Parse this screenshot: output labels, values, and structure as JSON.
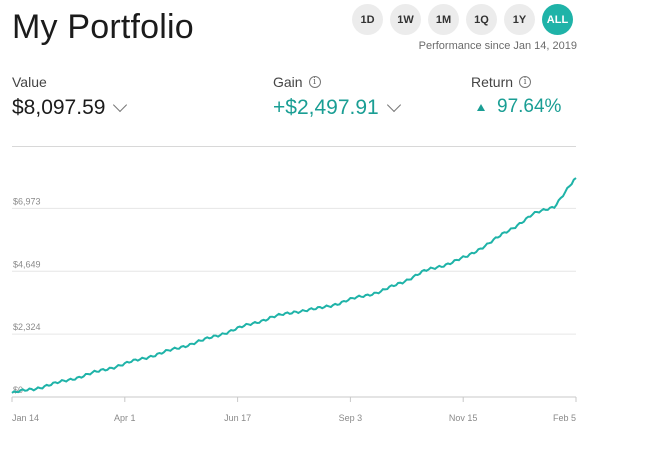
{
  "header": {
    "title": "My Portfolio",
    "ranges": [
      "1D",
      "1W",
      "1M",
      "1Q",
      "1Y",
      "ALL"
    ],
    "active_range": "ALL",
    "since": "Performance since Jan 14, 2019"
  },
  "metrics": {
    "value": {
      "label": "Value",
      "amount": "$8,097.59"
    },
    "gain": {
      "label": "Gain",
      "amount": "+$2,497.91"
    },
    "return": {
      "label": "Return",
      "amount": "97.64%"
    }
  },
  "colors": {
    "accent": "#1fb3a8",
    "positive": "#1a9e94"
  },
  "chart_data": {
    "type": "line",
    "x_ticks": [
      "Jan 14",
      "Apr 1",
      "Jun 17",
      "Sep 3",
      "Nov 15",
      "Feb 5"
    ],
    "y_ticks": [
      "$0",
      "$2,324",
      "$4,649",
      "$6,973"
    ],
    "y_tick_values": [
      0,
      2324,
      4649,
      6973
    ],
    "ylim": [
      0,
      8097.59
    ],
    "grid": "horizontal",
    "series": [
      {
        "values": [
          150,
          300,
          500,
          720,
          950,
          1180,
          1420,
          1650,
          1900,
          2150,
          2420,
          2700,
          2950,
          3150,
          3250,
          3450,
          3700,
          3900,
          4250,
          4650,
          4900,
          5200,
          5700,
          6200,
          6750,
          7050,
          8097.59
        ]
      }
    ]
  }
}
